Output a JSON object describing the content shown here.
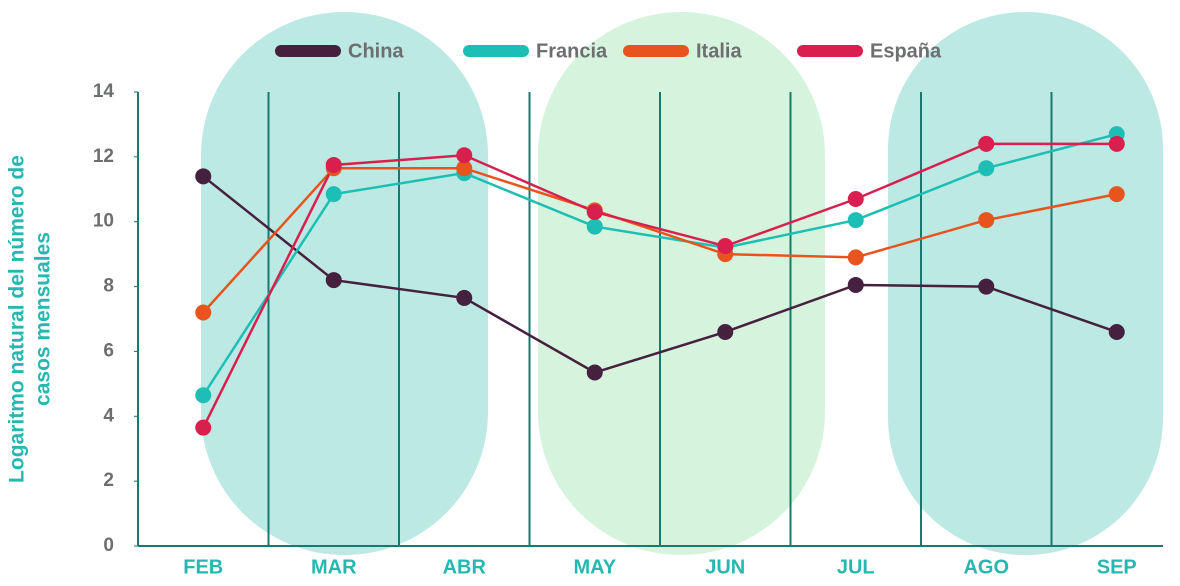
{
  "chart_data": {
    "type": "line",
    "y_label": [
      "Logaritmo natural del número de",
      "casos mensuales"
    ],
    "categories": [
      "FEB",
      "MAR",
      "ABR",
      "MAY",
      "JUN",
      "JUL",
      "AGO",
      "SEP"
    ],
    "series": [
      {
        "name": "China",
        "color": "#45203f",
        "values": [
          11.4,
          8.2,
          7.65,
          5.35,
          6.6,
          8.05,
          8.0,
          6.6
        ]
      },
      {
        "name": "Francia",
        "color": "#1dbfb5",
        "values": [
          4.65,
          10.85,
          11.5,
          9.85,
          9.2,
          10.05,
          11.65,
          12.7
        ]
      },
      {
        "name": "Italia",
        "color": "#e8541e",
        "values": [
          7.2,
          11.65,
          11.65,
          10.35,
          9.0,
          8.9,
          10.05,
          10.85
        ]
      },
      {
        "name": "España",
        "color": "#d81f4d",
        "values": [
          3.65,
          11.75,
          12.05,
          10.3,
          9.25,
          10.7,
          12.4,
          12.4
        ]
      }
    ],
    "ylim": [
      0,
      14
    ],
    "yticks": [
      0,
      2,
      4,
      6,
      8,
      10,
      12,
      14
    ],
    "legend": "top"
  }
}
